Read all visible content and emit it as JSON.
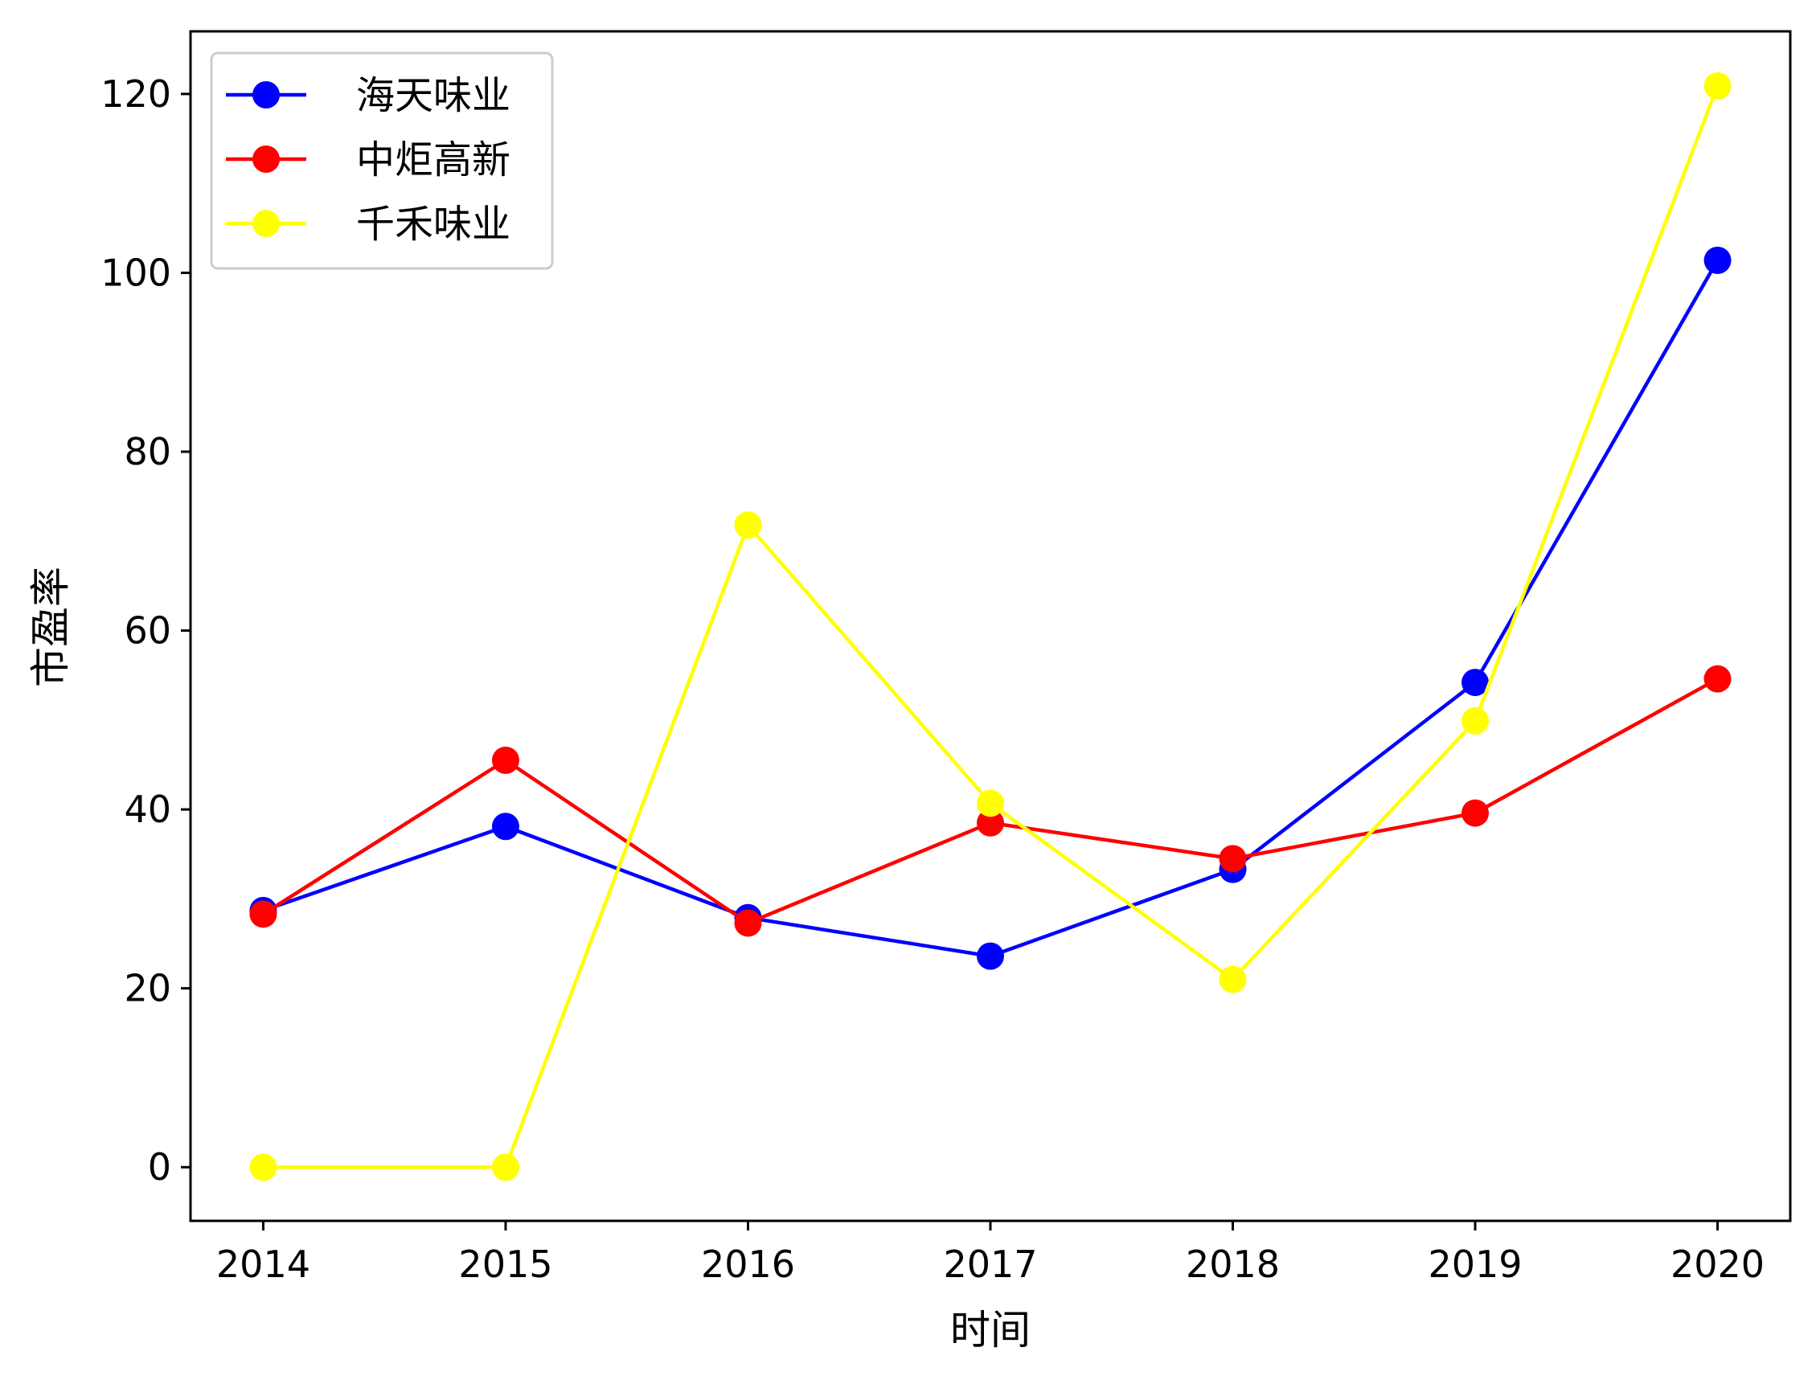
{
  "chart_data": {
    "type": "line",
    "xlabel": "时间",
    "ylabel": "市盈率",
    "x": [
      2014,
      2015,
      2016,
      2017,
      2018,
      2019,
      2020
    ],
    "x_tick_labels": [
      "2014",
      "2015",
      "2016",
      "2017",
      "2018",
      "2019",
      "2020"
    ],
    "xlim": [
      2013.7,
      2020.3
    ],
    "ylim": [
      -6,
      127
    ],
    "y_ticks": [
      0,
      20,
      40,
      60,
      80,
      100,
      120
    ],
    "y_tick_labels": [
      "0",
      "20",
      "40",
      "60",
      "80",
      "100",
      "120"
    ],
    "grid": false,
    "legend_position": "top-left",
    "series": [
      {
        "name": "海天味业",
        "color": "#0000ff",
        "marker": "circle",
        "values": [
          28.7,
          38.1,
          27.9,
          23.6,
          33.3,
          54.2,
          101.4
        ]
      },
      {
        "name": "中炬高新",
        "color": "#ff0000",
        "marker": "circle",
        "values": [
          28.3,
          45.5,
          27.3,
          38.5,
          34.5,
          39.6,
          54.6
        ]
      },
      {
        "name": "千禾味业",
        "color": "#ffff00",
        "marker": "circle",
        "values": [
          0,
          0,
          71.8,
          40.7,
          21.0,
          49.9,
          120.9
        ]
      }
    ]
  }
}
